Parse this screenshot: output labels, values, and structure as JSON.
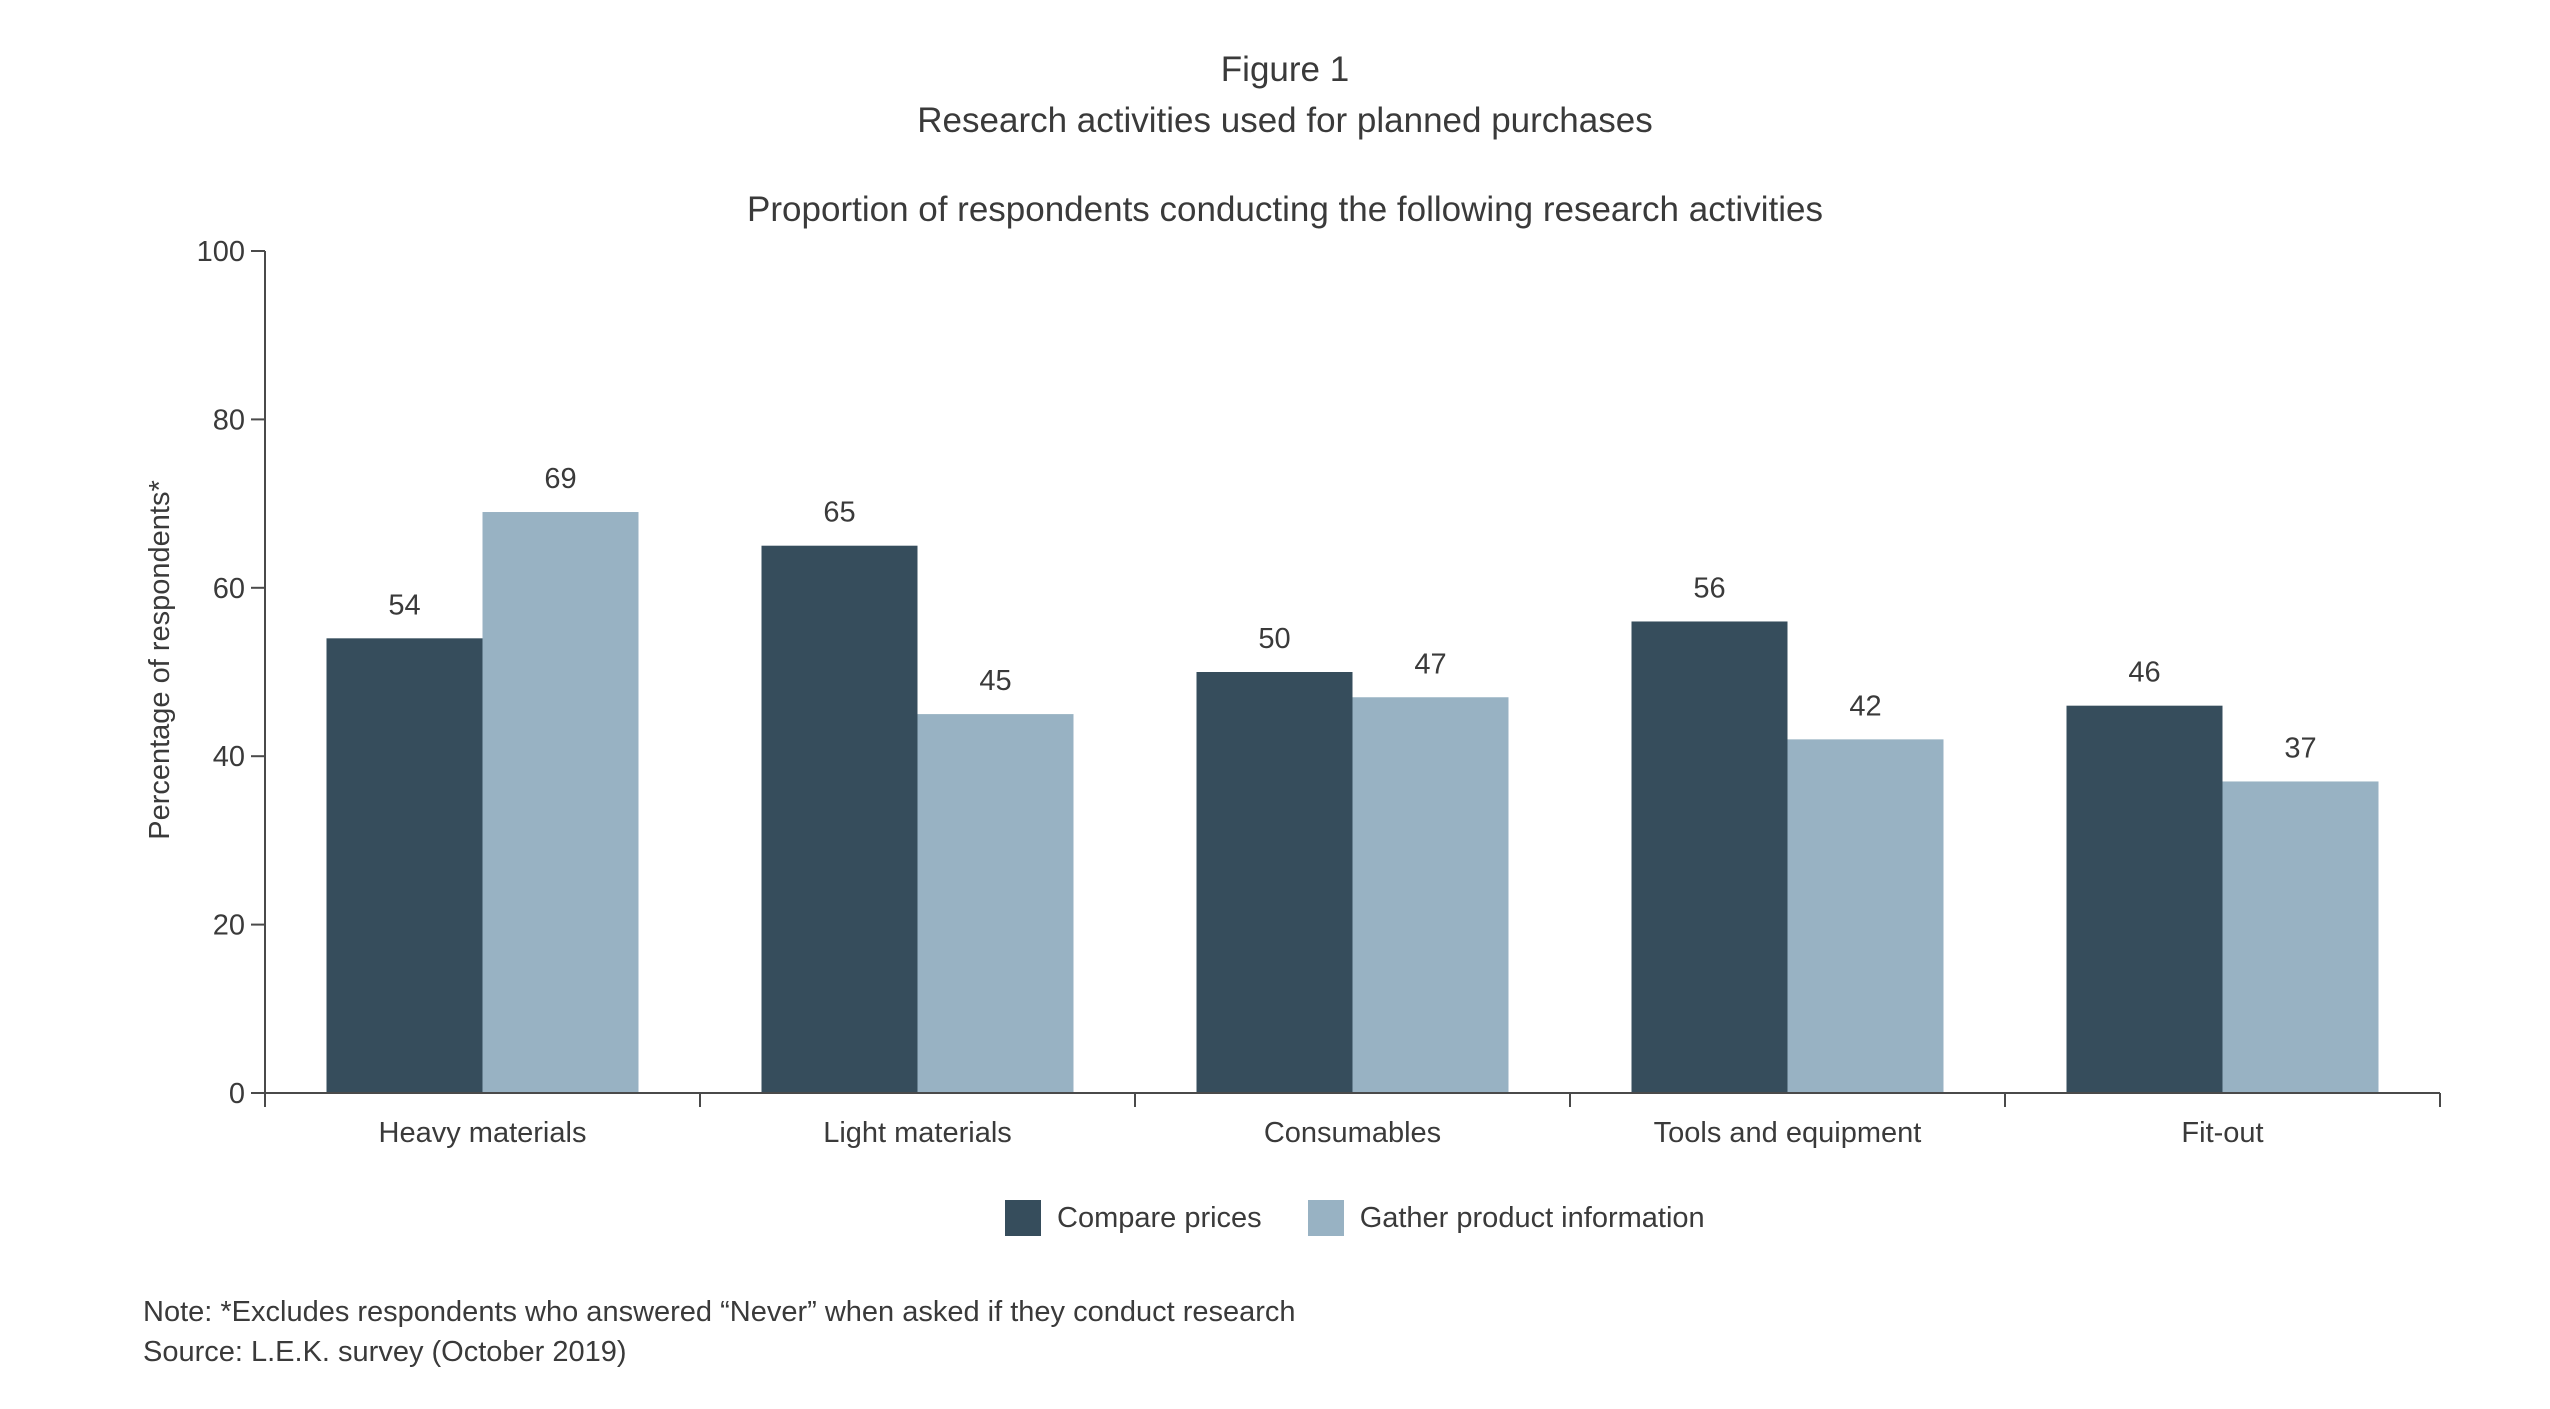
{
  "figure_label": "Figure 1",
  "title": "Research activities used for planned purchases",
  "subtitle": "Proportion of respondents conducting the following research activities",
  "note": "Note: *Excludes respondents who answered “Never” when asked if they conduct research",
  "source": "Source: L.E.K. survey (October 2019)",
  "colors": {
    "compare_prices": "#364d5c",
    "gather_info": "#98b2c3",
    "axis": "#4a4a4a"
  },
  "chart_data": {
    "type": "bar",
    "title": "Proportion of respondents conducting the following research activities",
    "xlabel": "",
    "ylabel": "Percentage of respondents*",
    "ylim": [
      0,
      100
    ],
    "yticks": [
      0,
      20,
      40,
      60,
      80,
      100
    ],
    "grid": false,
    "legend_position": "bottom",
    "categories": [
      "Heavy materials",
      "Light materials",
      "Consumables",
      "Tools and equipment",
      "Fit-out"
    ],
    "series": [
      {
        "name": "Compare prices",
        "values": [
          54,
          65,
          50,
          56,
          46
        ],
        "color": "#364d5c"
      },
      {
        "name": "Gather product information",
        "values": [
          69,
          45,
          47,
          42,
          37
        ],
        "color": "#98b2c3"
      }
    ]
  }
}
